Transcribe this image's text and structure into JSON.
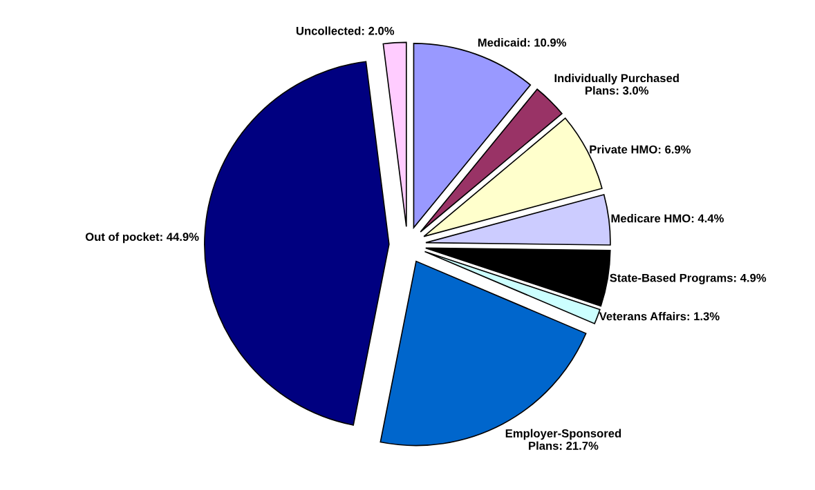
{
  "chart_data": {
    "type": "pie",
    "categories": [
      "Medicaid",
      "Individually Purchased Plans",
      "Private HMO",
      "Medicare HMO",
      "State-Based Programs",
      "Veterans Affairs",
      "Employer-Sponsored Plans",
      "Out of pocket",
      "Uncollected"
    ],
    "values": [
      10.9,
      3.0,
      6.9,
      4.4,
      4.9,
      1.3,
      21.7,
      44.9,
      2.0
    ],
    "colors": [
      "#9999ff",
      "#993366",
      "#ffffcc",
      "#ccccff",
      "#000000",
      "#ccffff",
      "#0066cc",
      "#000080",
      "#ffccff"
    ],
    "value_labels": [
      "10.9%",
      "3.0%",
      "6.9%",
      "4.4%",
      "4.9%",
      "1.3%",
      "21.7%",
      "44.9%",
      "2.0%"
    ],
    "legend": false
  }
}
